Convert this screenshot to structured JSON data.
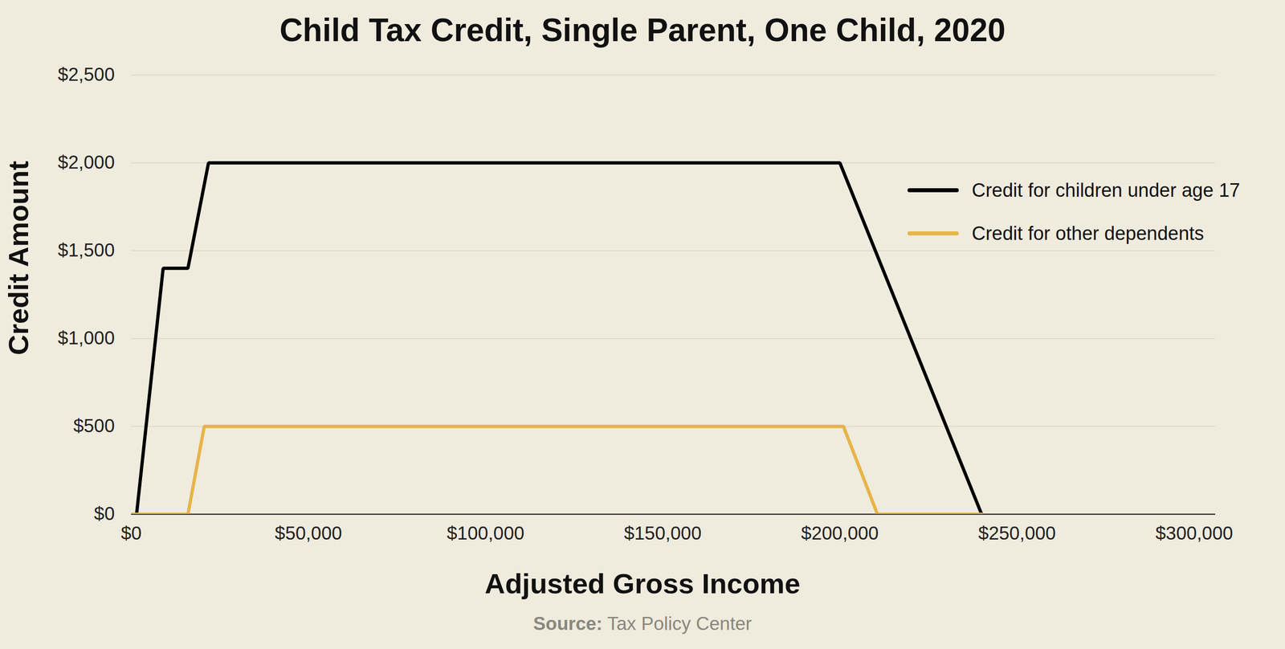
{
  "chart_data": {
    "type": "line",
    "title": "Child Tax Credit, Single Parent, One Child, 2020",
    "x_label": "Adjusted Gross Income",
    "y_label": "Credit Amount",
    "caption": "Source: Tax Policy Center",
    "series": [
      {
        "name": "Credit for children under age 17",
        "color": "#000000",
        "x": [
          1500,
          9000,
          16000,
          21800,
          200000,
          240000
        ],
        "values": [
          0,
          1400,
          1400,
          2000,
          2000,
          0
        ]
      },
      {
        "name": "Credit for other dependents",
        "color": "#e6b449",
        "x": [
          0,
          16000,
          20600,
          201000,
          210600,
          240000
        ],
        "values": [
          0,
          0,
          500,
          500,
          0,
          0
        ]
      }
    ],
    "xlim": [
      0,
      306000
    ],
    "xticks": [
      {
        "value": 0,
        "label": "$0"
      },
      {
        "value": 50000,
        "label": "$50,000"
      },
      {
        "value": 100000,
        "label": "$100,000"
      },
      {
        "value": 150000,
        "label": "$150,000"
      },
      {
        "value": 200000,
        "label": "$200,000"
      },
      {
        "value": 250000,
        "label": "$250,000"
      },
      {
        "value": 300000,
        "label": "$300,000"
      }
    ],
    "ylim": [
      0,
      2500
    ],
    "yticks": [
      {
        "value": 0,
        "label": "$0"
      },
      {
        "value": 500,
        "label": "$500"
      },
      {
        "value": 1000,
        "label": "$1,000"
      },
      {
        "value": 1500,
        "label": "$1,500"
      },
      {
        "value": 2000,
        "label": "$2,000"
      },
      {
        "value": 2500,
        "label": "$2,500"
      }
    ],
    "grid": true,
    "legend": "upper right"
  }
}
